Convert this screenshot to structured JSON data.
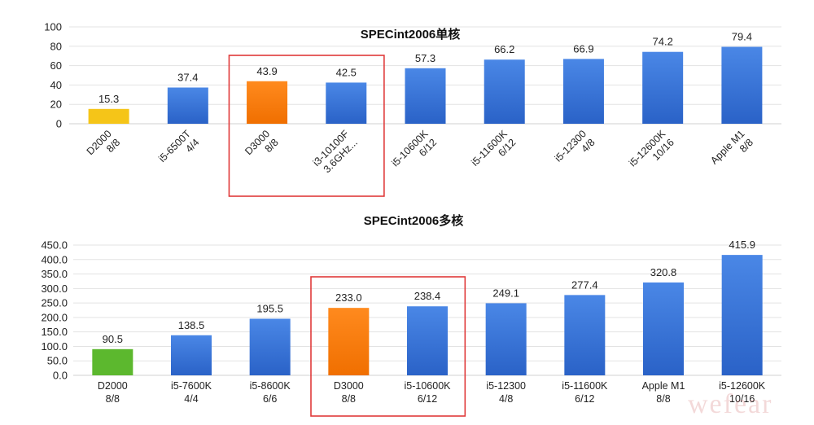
{
  "charts": [
    {
      "title": "SPECint2006单核",
      "yticks": [
        "100",
        "80",
        "60",
        "40",
        "20",
        "0"
      ],
      "y_max": 100
    },
    {
      "title": "SPECint2006多核",
      "yticks": [
        "450.0",
        "400.0",
        "350.0",
        "300.0",
        "250.0",
        "200.0",
        "150.0",
        "100.0",
        "50.0",
        "0.0"
      ],
      "y_max": 450
    }
  ],
  "watermark": "wefear",
  "chart_data": [
    {
      "type": "bar",
      "title": "SPECint2006单核",
      "categories": [
        [
          "D2000",
          "8/8"
        ],
        [
          "i5-6500T",
          "4/4"
        ],
        [
          "D3000",
          "8/8"
        ],
        [
          "i3-10100F",
          "3.6GHz..."
        ],
        [
          "i5-10600K",
          "6/12"
        ],
        [
          "i5-11600K",
          "6/12"
        ],
        [
          "i5-12300",
          "4/8"
        ],
        [
          "i5-12600K",
          "10/16"
        ],
        [
          "Apple M1",
          "8/8"
        ]
      ],
      "values": [
        15.3,
        37.4,
        43.9,
        42.5,
        57.3,
        66.2,
        66.9,
        74.2,
        79.4
      ],
      "data_labels": [
        "15.3",
        "37.4",
        "43.9",
        "42.5",
        "57.3",
        "66.2",
        "66.9",
        "74.2",
        "79.4"
      ],
      "bar_colors": [
        "#f5c518",
        "#2f6fd6",
        "#ff7f0e",
        "#2f6fd6",
        "#2f6fd6",
        "#2f6fd6",
        "#2f6fd6",
        "#2f6fd6",
        "#2f6fd6"
      ],
      "highlighted_categories": [
        "D3000",
        "i3-10100F"
      ],
      "highlight_color": "#e03a3a",
      "ylim": [
        0,
        100
      ],
      "grid": true,
      "xlabel": "",
      "ylabel": ""
    },
    {
      "type": "bar",
      "title": "SPECint2006多核",
      "categories": [
        [
          "D2000",
          "8/8"
        ],
        [
          "i5-7600K",
          "4/4"
        ],
        [
          "i5-8600K",
          "6/6"
        ],
        [
          "D3000",
          "8/8"
        ],
        [
          "i5-10600K",
          "6/12"
        ],
        [
          "i5-12300",
          "4/8"
        ],
        [
          "i5-11600K",
          "6/12"
        ],
        [
          "Apple M1",
          "8/8"
        ],
        [
          "i5-12600K",
          "10/16"
        ]
      ],
      "values": [
        90.5,
        138.5,
        195.5,
        233.0,
        238.4,
        249.1,
        277.4,
        320.8,
        415.9
      ],
      "data_labels": [
        "90.5",
        "138.5",
        "195.5",
        "233.0",
        "238.4",
        "249.1",
        "277.4",
        "320.8",
        "415.9"
      ],
      "bar_colors": [
        "#5cb82e",
        "#2f6fd6",
        "#2f6fd6",
        "#ff7f0e",
        "#2f6fd6",
        "#2f6fd6",
        "#2f6fd6",
        "#2f6fd6",
        "#2f6fd6"
      ],
      "highlighted_categories": [
        "D3000",
        "i5-10600K"
      ],
      "highlight_color": "#e03a3a",
      "ylim": [
        0,
        450
      ],
      "grid": true,
      "xlabel": "",
      "ylabel": ""
    }
  ]
}
